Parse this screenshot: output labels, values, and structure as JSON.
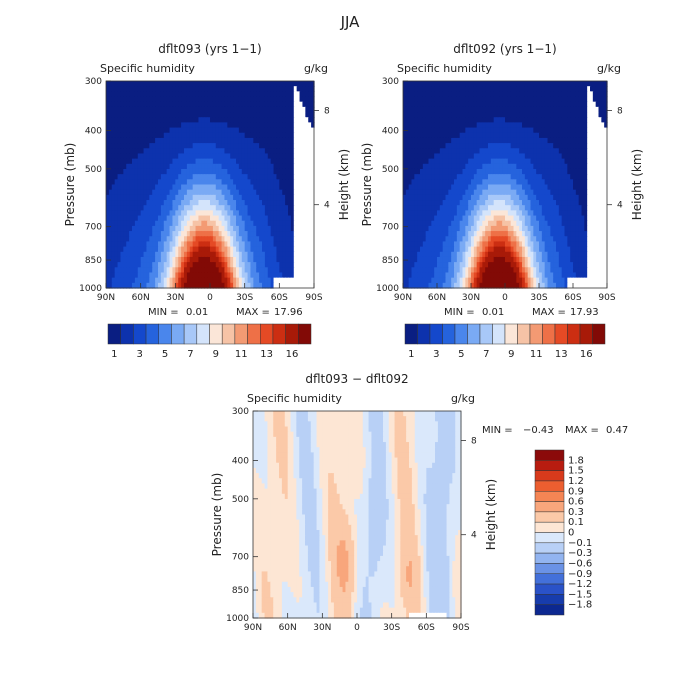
{
  "figure": {
    "season": "JJA"
  },
  "panels": [
    {
      "title": "dflt093 (yrs 1−1)",
      "field": "Specific humidity",
      "units": "g/kg",
      "ylabel": "Pressure (mb)",
      "ylabel_right": "Height (km)",
      "min_label": "MIN =",
      "min_value": "0.01",
      "max_label": "MAX =",
      "max_value": "17.96"
    },
    {
      "title": "dflt092 (yrs 1−1)",
      "field": "Specific humidity",
      "units": "g/kg",
      "ylabel": "Pressure (mb)",
      "ylabel_right": "Height (km)",
      "min_label": "MIN =",
      "min_value": "0.01",
      "max_label": "MAX =",
      "max_value": "17.93"
    },
    {
      "title": "dflt093 − dflt092",
      "field": "Specific humidity",
      "units": "g/kg",
      "ylabel": "Pressure (mb)",
      "ylabel_right": "Height (km)",
      "min_label": "MIN =",
      "min_value": "−0.43",
      "max_label": "MAX =",
      "max_value": "0.47"
    }
  ],
  "chart_data": [
    {
      "type": "heatmap",
      "title": "dflt093 (yrs 1−1)",
      "xlabel": "",
      "ylabel": "Pressure (mb)",
      "x_ticks": [
        "90N",
        "60N",
        "30N",
        "0",
        "30S",
        "60S",
        "90S"
      ],
      "x_range": [
        90,
        -90
      ],
      "y_ticks": [
        300,
        400,
        500,
        700,
        850,
        1000
      ],
      "y_range": [
        300,
        1000
      ],
      "y_scale": "log",
      "y2_ticks": [
        8,
        4
      ],
      "min": 0.01,
      "max": 17.96,
      "colorbar_labels": [
        "1",
        "3",
        "5",
        "7",
        "9",
        "11",
        "13",
        "16"
      ],
      "colorbar_colors": [
        "#0a1e82",
        "#0d32ad",
        "#1448cc",
        "#2563dd",
        "#4a86ec",
        "#7aaaf4",
        "#a8c8f8",
        "#d4e4fb",
        "#fbe6d8",
        "#f6c3a6",
        "#f39a73",
        "#ee7047",
        "#e54a25",
        "#cc2e12",
        "#a81a08",
        "#820a06"
      ],
      "peak_lat": 5,
      "peak_pressure": 1000
    },
    {
      "type": "heatmap",
      "title": "dflt092 (yrs 1−1)",
      "xlabel": "",
      "ylabel": "Pressure (mb)",
      "x_ticks": [
        "90N",
        "60N",
        "30N",
        "0",
        "30S",
        "60S",
        "90S"
      ],
      "x_range": [
        90,
        -90
      ],
      "y_ticks": [
        300,
        400,
        500,
        700,
        850,
        1000
      ],
      "y_range": [
        300,
        1000
      ],
      "y_scale": "log",
      "y2_ticks": [
        8,
        4
      ],
      "min": 0.01,
      "max": 17.93,
      "colorbar_labels": [
        "1",
        "3",
        "5",
        "7",
        "9",
        "11",
        "13",
        "16"
      ],
      "colorbar_colors": [
        "#0a1e82",
        "#0d32ad",
        "#1448cc",
        "#2563dd",
        "#4a86ec",
        "#7aaaf4",
        "#a8c8f8",
        "#d4e4fb",
        "#fbe6d8",
        "#f6c3a6",
        "#f39a73",
        "#ee7047",
        "#e54a25",
        "#cc2e12",
        "#a81a08",
        "#820a06"
      ],
      "peak_lat": 5,
      "peak_pressure": 1000
    },
    {
      "type": "heatmap",
      "title": "dflt093 − dflt092",
      "xlabel": "",
      "ylabel": "Pressure (mb)",
      "x_ticks": [
        "90N",
        "60N",
        "30N",
        "0",
        "30S",
        "60S",
        "90S"
      ],
      "x_range": [
        90,
        -90
      ],
      "y_ticks": [
        300,
        400,
        500,
        700,
        850,
        1000
      ],
      "y_range": [
        300,
        1000
      ],
      "y_scale": "log",
      "y2_ticks": [
        8,
        4
      ],
      "min": -0.43,
      "max": 0.47,
      "colorbar_labels": [
        "1.8",
        "1.5",
        "1.2",
        "0.9",
        "0.6",
        "0.3",
        "0.1",
        "0",
        "−0.1",
        "−0.3",
        "−0.6",
        "−0.9",
        "−1.2",
        "−1.5",
        "−1.8"
      ],
      "colorbar_colors": [
        "#8b0a0a",
        "#b81c10",
        "#d83a1c",
        "#ec5e30",
        "#f58554",
        "#f8a67c",
        "#fbc9a8",
        "#fde6d4",
        "#dae8fb",
        "#b8d0f6",
        "#92b4f0",
        "#6a92e6",
        "#4370da",
        "#2a52c8",
        "#173cac",
        "#0c2890"
      ]
    }
  ]
}
